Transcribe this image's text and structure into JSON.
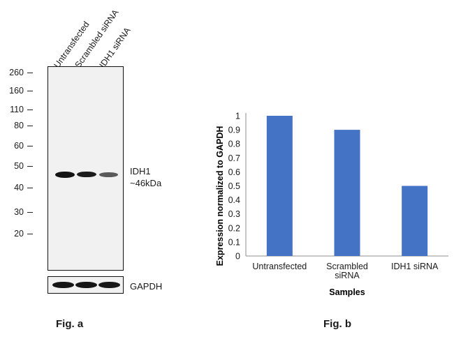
{
  "fig_a": {
    "label": "Fig. a",
    "lanes": [
      "Untransfected",
      "Scrambled siRNA",
      "IDH1 siRNA"
    ],
    "markers": [
      "260",
      "160",
      "110",
      "80",
      "60",
      "50",
      "40",
      "30",
      "20"
    ],
    "band_label_line1": "IDH1",
    "band_label_line2": "~46kDa",
    "loading_label": "GAPDH",
    "band_intensity": [
      1.0,
      0.9,
      0.5
    ]
  },
  "fig_b": {
    "label": "Fig. b"
  },
  "chart_data": {
    "type": "bar",
    "categories": [
      "Untransfected",
      "Scrambled siRNA",
      "IDH1 siRNA"
    ],
    "values": [
      1.0,
      0.9,
      0.5
    ],
    "xlabel": "Samples",
    "ylabel": "Expression normalized to GAPDH",
    "ylim": [
      0,
      1
    ],
    "yticks": [
      "0",
      "0.1",
      "0.2",
      "0.3",
      "0.4",
      "0.5",
      "0.6",
      "0.7",
      "0.8",
      "0.9",
      "1"
    ],
    "bar_color": "#4472c4",
    "grid": false,
    "legend": "none"
  }
}
